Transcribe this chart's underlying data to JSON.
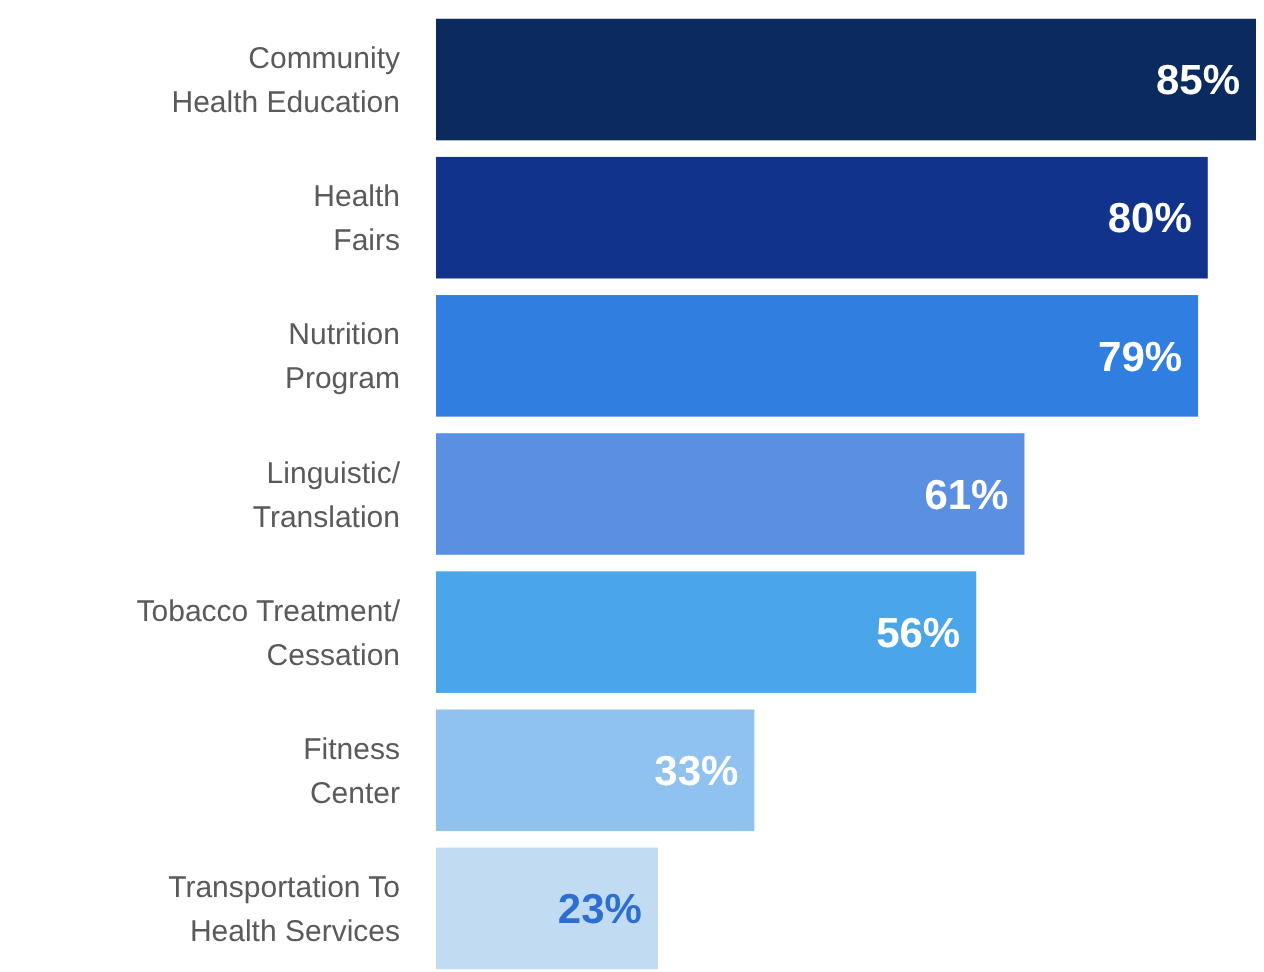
{
  "chart_data": {
    "type": "bar",
    "orientation": "horizontal",
    "value_labels": [
      "85%",
      "80%",
      "79%",
      "61%",
      "56%",
      "33%",
      "23%"
    ],
    "categories": [
      "Community\nHealth Education",
      "Health\nFairs",
      "Nutrition\nProgram",
      "Linguistic/\nTranslation",
      "Tobacco Treatment/\nCessation",
      "Fitness\nCenter",
      "Transportation To\nHealth Services"
    ],
    "values": [
      85,
      80,
      79,
      61,
      56,
      33,
      23
    ],
    "colors": [
      "#0b2a5e",
      "#12338c",
      "#2f7ee0",
      "#5b8fe2",
      "#4aa6e8",
      "#8fc2ee",
      "#c0dbf2"
    ]
  }
}
